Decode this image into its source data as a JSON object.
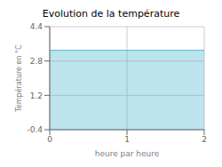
{
  "chart_data": {
    "type": "area",
    "title": "Evolution de la température",
    "xlabel": "heure par heure",
    "ylabel": "Température en °C",
    "x": [
      0,
      2
    ],
    "values": [
      3.3,
      3.3
    ],
    "color": "#5bb8d4",
    "xlim": [
      0,
      2
    ],
    "ylim": [
      -0.4,
      4.4
    ],
    "xticks": [
      0,
      1,
      2
    ],
    "yticks": [
      -0.4,
      1.2,
      2.8,
      4.4
    ],
    "grid": true
  }
}
